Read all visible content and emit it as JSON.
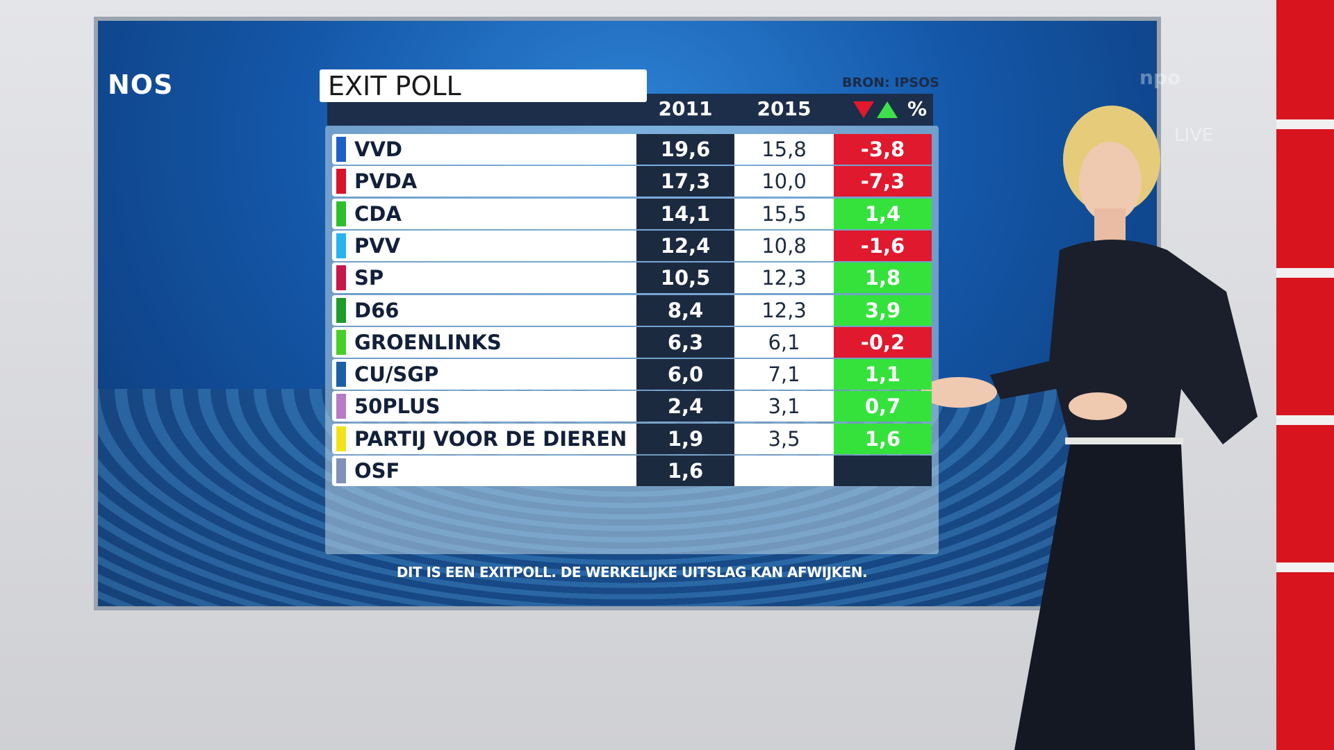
{
  "logo": "NOS",
  "channel": {
    "brand": "npo",
    "status": "LIVE"
  },
  "header": {
    "title": "EXIT POLL",
    "source": "BRON: IPSOS"
  },
  "table": {
    "columns": [
      "2011",
      "2015",
      "%"
    ],
    "rows": [
      {
        "party": "VVD",
        "color": "#1f5fc8",
        "v2011": "19,6",
        "v2015": "15,8",
        "change": "-3,8"
      },
      {
        "party": "PVDA",
        "color": "#d8132a",
        "v2011": "17,3",
        "v2015": "10,0",
        "change": "-7,3"
      },
      {
        "party": "CDA",
        "color": "#2dbf2a",
        "v2011": "14,1",
        "v2015": "15,5",
        "change": "1,4"
      },
      {
        "party": "PVV",
        "color": "#27b3ee",
        "v2011": "12,4",
        "v2015": "10,8",
        "change": "-1,6"
      },
      {
        "party": "SP",
        "color": "#c8174a",
        "v2011": "10,5",
        "v2015": "12,3",
        "change": "1,8"
      },
      {
        "party": "D66",
        "color": "#1f9b2c",
        "v2011": "8,4",
        "v2015": "12,3",
        "change": "3,9"
      },
      {
        "party": "GROENLINKS",
        "color": "#49cf2b",
        "v2011": "6,3",
        "v2015": "6,1",
        "change": "-0,2"
      },
      {
        "party": "CU/SGP",
        "color": "#1b5fa6",
        "v2011": "6,0",
        "v2015": "7,1",
        "change": "1,1"
      },
      {
        "party": "50PLUS",
        "color": "#b77ac4",
        "v2011": "2,4",
        "v2015": "3,1",
        "change": "0,7"
      },
      {
        "party": "PARTIJ VOOR DE DIEREN",
        "color": "#f2e21a",
        "v2011": "1,9",
        "v2015": "3,5",
        "change": "1,6"
      },
      {
        "party": "OSF",
        "color": "#8190b8",
        "v2011": "1,6",
        "v2015": null,
        "change": null
      }
    ]
  },
  "footer": "DIT IS EEN EXITPOLL.  DE WERKELIJKE UITSLAG KAN AFWIJKEN."
}
